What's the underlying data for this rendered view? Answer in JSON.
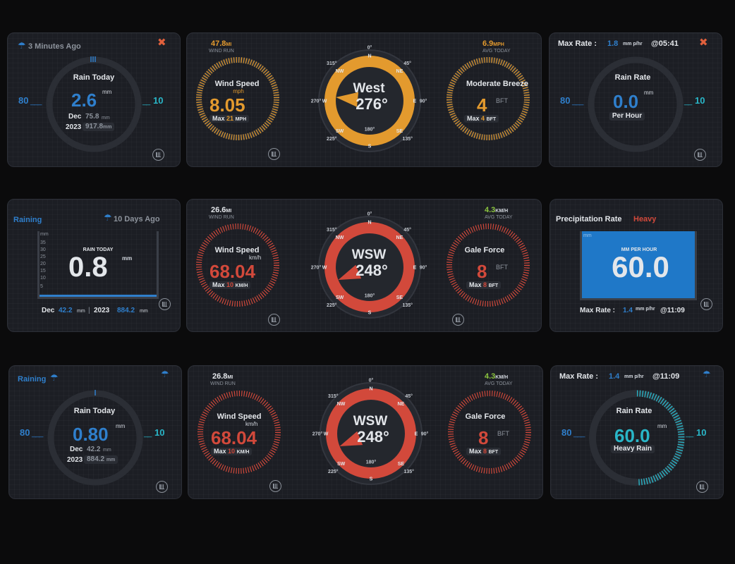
{
  "colors": {
    "blue": "#2f7fcc",
    "orange": "#e39a2e",
    "red": "#d2493b",
    "teal": "#29b6c8",
    "green": "#8cc63f",
    "card": "#1c1e24"
  },
  "row1": {
    "rain": {
      "ago": "3 Minutes Ago",
      "label": "Rain Today",
      "value": "2.6",
      "unit": "mm",
      "scale_left": "80",
      "scale_right": "10",
      "month_label": "Dec",
      "month_value": "75.8",
      "month_unit": "mm",
      "year_label": "2023",
      "year_value": "917.8",
      "year_unit": "mm"
    },
    "wind": {
      "run_value": "47.8",
      "run_unit": "MI",
      "run_label": "WIND RUN",
      "speed_label": "Wind Speed",
      "speed_unit": "mph",
      "speed_value": "8.05",
      "max_label": "Max",
      "max_value": "21",
      "max_unit": "MPH",
      "dir_text": "West",
      "dir_deg": "276°",
      "dir_angle": 276,
      "avg_value": "6.9",
      "avg_unit": "MPH",
      "avg_label": "AVG TODAY",
      "beaufort_label": "Moderate Breeze",
      "bft_value": "4",
      "bft_unit": "BFT",
      "bft_max_label": "Max",
      "bft_max_value": "4",
      "bft_max_unit": "BFT"
    },
    "rate": {
      "max_label": "Max Rate :",
      "max_value": "1.8",
      "max_unit": "mm p/hr",
      "max_time": "05:41",
      "label": "Rain Rate",
      "value": "0.0",
      "unit": "mm",
      "sub": "Per Hour",
      "scale_left": "80",
      "scale_right": "10"
    }
  },
  "row2": {
    "rain": {
      "status": "Raining",
      "ago": "10 Days Ago",
      "label": "RAIN TODAY",
      "value": "0.8",
      "unit": "mm",
      "scale": [
        "mm",
        "35",
        "30",
        "25",
        "20",
        "15",
        "10",
        "5"
      ],
      "month_label": "Dec",
      "month_value": "42.2",
      "month_unit": "mm",
      "sep": "|",
      "year_label": "2023",
      "year_value": "884.2",
      "year_unit": "mm"
    },
    "wind": {
      "run_value": "26.6",
      "run_unit": "MI",
      "run_label": "WIND RUN",
      "speed_label": "Wind Speed",
      "speed_unit": "km/h",
      "speed_value": "68.04",
      "max_label": "Max",
      "max_value": "10",
      "max_unit": "KM/H",
      "dir_text": "WSW",
      "dir_deg": "248°",
      "dir_angle": 248,
      "avg_value": "4.3",
      "avg_unit": "KM/H",
      "avg_label": "AVG TODAY",
      "beaufort_label": "Gale Force",
      "bft_value": "8",
      "bft_unit": "BFT",
      "bft_max_label": "Max",
      "bft_max_value": "8",
      "bft_max_unit": "BFT"
    },
    "precip": {
      "title": "Precipitation Rate",
      "intensity": "Heavy",
      "tank_unit": "mm",
      "label": "MM PER HOUR",
      "value": "60.0",
      "max_label": "Max Rate :",
      "max_value": "1.4",
      "max_unit": "mm p/hr",
      "max_time": "11:09"
    }
  },
  "row3": {
    "rain": {
      "status": "Raining",
      "label": "Rain Today",
      "value": "0.80",
      "unit": "mm",
      "scale_left": "80",
      "scale_right": "10",
      "month_label": "Dec",
      "month_value": "42.2",
      "month_unit": "mm",
      "year_label": "2023",
      "year_value": "884.2",
      "year_unit": "mm"
    },
    "wind": {
      "run_value": "26.8",
      "run_unit": "MI",
      "run_label": "WIND RUN",
      "speed_label": "Wind Speed",
      "speed_unit": "km/h",
      "speed_value": "68.04",
      "max_label": "Max",
      "max_value": "10",
      "max_unit": "KM/H",
      "dir_text": "WSW",
      "dir_deg": "248°",
      "dir_angle": 248,
      "avg_value": "4.3",
      "avg_unit": "KM/H",
      "avg_label": "AVG TODAY",
      "beaufort_label": "Gale Force",
      "bft_value": "8",
      "bft_unit": "BFT",
      "bft_max_label": "Max",
      "bft_max_value": "8",
      "bft_max_unit": "BFT"
    },
    "rate": {
      "max_label": "Max Rate :",
      "max_value": "1.4",
      "max_unit": "mm p/hr",
      "max_time": "11:09",
      "label": "Rain Rate",
      "value": "60.0",
      "unit": "mm",
      "sub": "Heavy Rain",
      "scale_left": "80",
      "scale_right": "10"
    }
  },
  "compass": {
    "n": "N",
    "ne": "NE",
    "e": "E",
    "se": "SE",
    "s": "S",
    "sw": "SW",
    "w": "W",
    "nw": "NW",
    "d0": "0°",
    "d45": "45°",
    "d90": "90°",
    "d135": "135°",
    "d180": "180°",
    "d225": "225°",
    "d270": "270°",
    "d315": "315°"
  },
  "icons": {
    "umbrella": "umbrella-icon",
    "no_rain": "no-rain-icon",
    "history": "history-chart-icon",
    "at": "@"
  }
}
